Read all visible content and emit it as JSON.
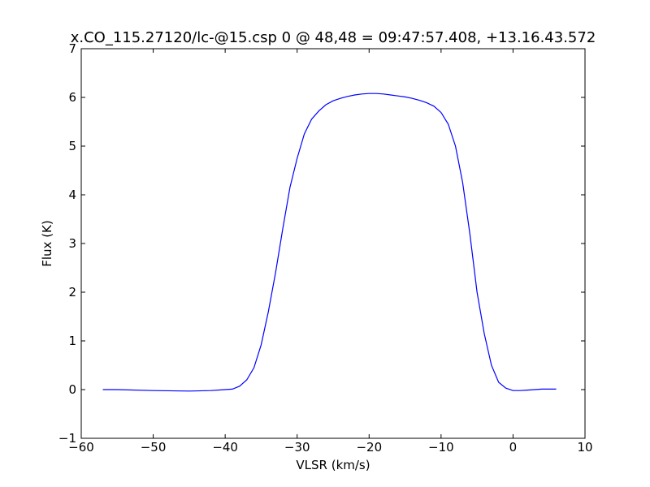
{
  "chart_data": {
    "type": "line",
    "title": "x.CO_115.27120/lc-@15.csp 0 @ 48,48 = 09:47:57.408, +13.16.43.572",
    "x_label": "VLSR (km/s)",
    "y_label": "Flux (K)",
    "x": [
      -57,
      -55,
      -50,
      -45,
      -42,
      -40,
      -39,
      -38,
      -37,
      -36,
      -35,
      -34,
      -33,
      -32,
      -31,
      -30,
      -29,
      -28,
      -27,
      -26,
      -25,
      -24,
      -23,
      -22,
      -21,
      -20,
      -19,
      -18,
      -17,
      -16,
      -15,
      -14,
      -13,
      -12,
      -11,
      -10,
      -9,
      -8,
      -7,
      -6,
      -5,
      -4,
      -3,
      -2,
      -1,
      0,
      1,
      2,
      3,
      4,
      5,
      6
    ],
    "series": [
      {
        "color": "#0000ff",
        "values": [
          0.0,
          0.0,
          -0.02,
          -0.03,
          -0.02,
          0.0,
          0.01,
          0.07,
          0.2,
          0.45,
          0.92,
          1.6,
          2.4,
          3.3,
          4.15,
          4.75,
          5.25,
          5.55,
          5.72,
          5.85,
          5.93,
          5.98,
          6.02,
          6.05,
          6.07,
          6.08,
          6.08,
          6.07,
          6.05,
          6.03,
          6.01,
          5.98,
          5.94,
          5.89,
          5.82,
          5.69,
          5.45,
          5.0,
          4.25,
          3.2,
          2.0,
          1.15,
          0.5,
          0.15,
          0.03,
          -0.02,
          -0.02,
          -0.01,
          0.0,
          0.01,
          0.01,
          0.01
        ]
      }
    ],
    "xlim": [
      -60,
      10
    ],
    "xticks": [
      {
        "value": -60,
        "label": "−60"
      },
      {
        "value": -50,
        "label": "−50"
      },
      {
        "value": -40,
        "label": "−40"
      },
      {
        "value": -30,
        "label": "−30"
      },
      {
        "value": -20,
        "label": "−20"
      },
      {
        "value": -10,
        "label": "−10"
      },
      0,
      10
    ],
    "ylim": [
      -1,
      7
    ],
    "yticks": [
      {
        "value": -1,
        "label": "−1"
      },
      0,
      1,
      2,
      3,
      4,
      5,
      6,
      7
    ],
    "grid": false
  }
}
